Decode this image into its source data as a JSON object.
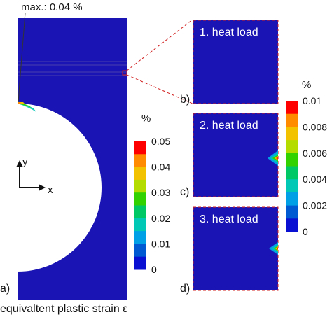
{
  "max_label": "max.: 0.04 %",
  "panels": {
    "a": {
      "tag": "a)"
    },
    "b": {
      "tag": "b)",
      "title": "1. heat load"
    },
    "c": {
      "tag": "c)",
      "title": "2. heat load"
    },
    "d": {
      "tag": "d)",
      "title": "3. heat load"
    }
  },
  "axes": {
    "y": "y",
    "x": "x"
  },
  "caption": "equivaltent plastic strain ε",
  "colorbar_main": {
    "unit": "%",
    "ticks": [
      "0.05",
      "0.04",
      "0.03",
      "0.02",
      "0.01",
      "0"
    ],
    "colors": [
      "#ff0000",
      "#ff8c00",
      "#f2c100",
      "#b4dc00",
      "#32d200",
      "#00c864",
      "#00c8b4",
      "#00a0e6",
      "#005ad2",
      "#0a10d2"
    ]
  },
  "colorbar_zoom": {
    "unit": "%",
    "ticks": [
      "0.01",
      "0.008",
      "0.006",
      "0.004",
      "0.002",
      "0"
    ],
    "colors": [
      "#ff0000",
      "#ff8c00",
      "#f2c100",
      "#b4dc00",
      "#32d200",
      "#00c864",
      "#00c8b4",
      "#00a0e6",
      "#005ad2",
      "#0a10d2"
    ]
  },
  "model_color": "#1a14b4",
  "highlight_color": "#d22020"
}
